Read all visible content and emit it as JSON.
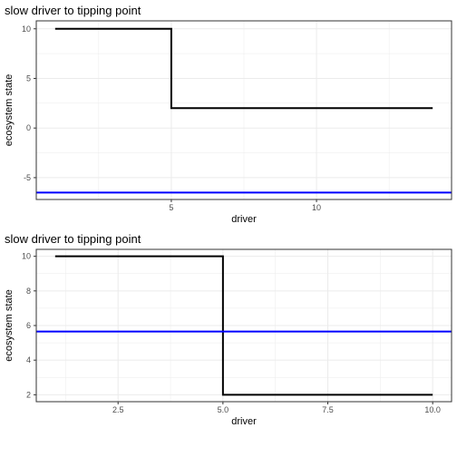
{
  "chart_data": [
    {
      "type": "line",
      "title": "slow driver to tipping point",
      "xlabel": "driver",
      "ylabel": "ecosystem state",
      "xlim": [
        0.35,
        14.65
      ],
      "ylim": [
        -7.2,
        10.8
      ],
      "xticks": [
        5,
        10
      ],
      "xtick_labels": [
        "5",
        "10"
      ],
      "yticks": [
        -5,
        0,
        5,
        10
      ],
      "ytick_labels": [
        "-5",
        "0",
        "5",
        "10"
      ],
      "x_minor": [
        2.5,
        7.5,
        12.5
      ],
      "y_minor": [
        -2.5,
        2.5,
        7.5
      ],
      "grid": true,
      "series": [
        {
          "color": "#000000",
          "step": true,
          "x": [
            1,
            5,
            5,
            14
          ],
          "y": [
            10,
            10,
            2,
            2
          ]
        }
      ],
      "hlines": [
        {
          "y": -6.5,
          "color": "#0000ff"
        }
      ]
    },
    {
      "type": "line",
      "title": "slow driver to tipping point",
      "xlabel": "driver",
      "ylabel": "ecosystem state",
      "xlim": [
        0.55,
        10.45
      ],
      "ylim": [
        1.6,
        10.4
      ],
      "xticks": [
        2.5,
        5.0,
        7.5,
        10.0
      ],
      "xtick_labels": [
        "2.5",
        "5.0",
        "7.5",
        "10.0"
      ],
      "yticks": [
        2,
        4,
        6,
        8,
        10
      ],
      "ytick_labels": [
        "2",
        "4",
        "6",
        "8",
        "10"
      ],
      "x_minor": [
        1.25,
        3.75,
        6.25,
        8.75
      ],
      "y_minor": [
        3,
        5,
        7,
        9
      ],
      "grid": true,
      "series": [
        {
          "color": "#000000",
          "step": true,
          "x": [
            1,
            5,
            5,
            10
          ],
          "y": [
            10,
            10,
            2,
            2
          ]
        }
      ],
      "hlines": [
        {
          "y": 5.65,
          "color": "#0000ff"
        }
      ]
    }
  ]
}
